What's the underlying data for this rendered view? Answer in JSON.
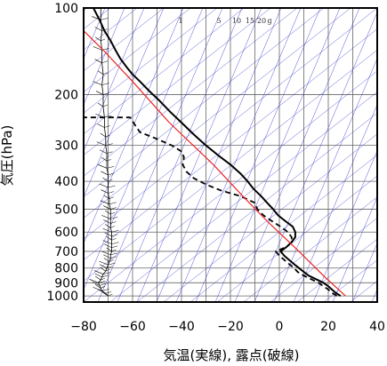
{
  "chart_data": {
    "type": "line",
    "title": "",
    "xlabel": "気温(実線), 露点(破線)",
    "ylabel": "気圧(hPa)",
    "y_scale": "log",
    "xlim": [
      -80,
      40
    ],
    "ylim": [
      1050,
      100
    ],
    "x_ticks": [
      -80,
      -60,
      -40,
      -20,
      0,
      20,
      40
    ],
    "y_ticks": [
      100,
      200,
      300,
      400,
      500,
      600,
      700,
      800,
      900,
      1000
    ],
    "grid": true,
    "mixing_ratio_labels": [
      "1",
      "5",
      "10",
      "15",
      "20",
      "g"
    ],
    "colors": {
      "frame": "#000000",
      "grid": "#666666",
      "isotherm_lines": "#3333cc",
      "temperature": "#000000",
      "dewpoint": "#000000",
      "reference_line": "#ee2222",
      "wind": "#000000"
    },
    "series": [
      {
        "key": "temperature",
        "style": "solid",
        "points": [
          [
            25.0,
            1000
          ],
          [
            23.0,
            975
          ],
          [
            21.5,
            950
          ],
          [
            20.0,
            925
          ],
          [
            18.0,
            900
          ],
          [
            15.0,
            875
          ],
          [
            12.0,
            850
          ],
          [
            10.0,
            825
          ],
          [
            8.0,
            800
          ],
          [
            6.0,
            775
          ],
          [
            4.0,
            750
          ],
          [
            2.0,
            725
          ],
          [
            0.5,
            700
          ],
          [
            3.0,
            675
          ],
          [
            5.0,
            650
          ],
          [
            6.5,
            625
          ],
          [
            6.5,
            600
          ],
          [
            5.5,
            575
          ],
          [
            2.5,
            550
          ],
          [
            -0.5,
            525
          ],
          [
            -2.5,
            500
          ],
          [
            -5.0,
            475
          ],
          [
            -7.5,
            450
          ],
          [
            -10.5,
            425
          ],
          [
            -13.0,
            400
          ],
          [
            -16.0,
            375
          ],
          [
            -20.0,
            350
          ],
          [
            -25.0,
            325
          ],
          [
            -30.0,
            300
          ],
          [
            -35.0,
            275
          ],
          [
            -40.0,
            250
          ],
          [
            -44.5,
            230
          ],
          [
            -49.0,
            210
          ],
          [
            -53.0,
            195
          ],
          [
            -57.0,
            180
          ],
          [
            -60.0,
            170
          ],
          [
            -62.5,
            160
          ],
          [
            -65.0,
            150
          ],
          [
            -67.0,
            140
          ],
          [
            -69.0,
            130
          ],
          [
            -71.5,
            120
          ],
          [
            -73.5,
            110
          ],
          [
            -76.0,
            100
          ]
        ]
      },
      {
        "key": "dewpoint",
        "style": "dashed",
        "points": [
          [
            23.5,
            1000
          ],
          [
            21.5,
            975
          ],
          [
            20.0,
            950
          ],
          [
            18.0,
            925
          ],
          [
            16.0,
            900
          ],
          [
            13.0,
            875
          ],
          [
            10.0,
            850
          ],
          [
            7.5,
            825
          ],
          [
            6.0,
            800
          ],
          [
            4.0,
            775
          ],
          [
            2.0,
            750
          ],
          [
            0.0,
            725
          ],
          [
            -1.5,
            700
          ],
          [
            3.0,
            675
          ],
          [
            5.0,
            650
          ],
          [
            5.0,
            625
          ],
          [
            3.5,
            600
          ],
          [
            0.5,
            575
          ],
          [
            -3.0,
            550
          ],
          [
            -6.5,
            525
          ],
          [
            -9.0,
            500
          ],
          [
            -10.0,
            475
          ],
          [
            -16.0,
            450
          ],
          [
            -24.0,
            430
          ],
          [
            -30.0,
            410
          ],
          [
            -35.0,
            390
          ],
          [
            -38.0,
            370
          ],
          [
            -39.5,
            350
          ],
          [
            -39.0,
            330
          ],
          [
            -40.0,
            315
          ],
          [
            -44.0,
            300
          ],
          [
            -50.0,
            285
          ],
          [
            -57.0,
            270
          ],
          [
            -59.0,
            255
          ],
          [
            -61.0,
            240
          ],
          [
            -80.0,
            240
          ]
        ]
      },
      {
        "key": "reference",
        "style": "solid",
        "points": [
          [
            27.0,
            1000
          ],
          [
            18.0,
            850
          ],
          [
            8.0,
            700
          ],
          [
            -5.0,
            550
          ],
          [
            -15.0,
            450
          ],
          [
            -27.0,
            350
          ],
          [
            -45.0,
            250
          ],
          [
            -60.0,
            180
          ],
          [
            -72.0,
            140
          ],
          [
            -80.0,
            120
          ]
        ]
      }
    ],
    "wind_profile": [
      [
        1000,
        -70.0
      ],
      [
        980,
        -71.0
      ],
      [
        960,
        -72.5
      ],
      [
        940,
        -73.0
      ],
      [
        920,
        -73.5
      ],
      [
        900,
        -74.0
      ],
      [
        880,
        -73.0
      ],
      [
        860,
        -72.5
      ],
      [
        840,
        -72.0
      ],
      [
        820,
        -71.0
      ],
      [
        800,
        -70.5
      ],
      [
        780,
        -70.0
      ],
      [
        760,
        -69.5
      ],
      [
        740,
        -69.0
      ],
      [
        720,
        -69.0
      ],
      [
        700,
        -68.5
      ],
      [
        680,
        -68.5
      ],
      [
        660,
        -68.5
      ],
      [
        640,
        -68.5
      ],
      [
        620,
        -68.5
      ],
      [
        600,
        -68.5
      ],
      [
        580,
        -69.0
      ],
      [
        560,
        -69.0
      ],
      [
        540,
        -69.0
      ],
      [
        520,
        -69.0
      ],
      [
        500,
        -69.0
      ],
      [
        480,
        -69.5
      ],
      [
        460,
        -69.5
      ],
      [
        440,
        -70.0
      ],
      [
        420,
        -70.0
      ],
      [
        400,
        -70.0
      ],
      [
        380,
        -70.0
      ],
      [
        360,
        -70.5
      ],
      [
        340,
        -70.5
      ],
      [
        320,
        -70.5
      ],
      [
        300,
        -71.0
      ],
      [
        280,
        -71.0
      ],
      [
        260,
        -71.5
      ],
      [
        240,
        -71.5
      ],
      [
        220,
        -72.0
      ],
      [
        200,
        -72.0
      ],
      [
        185,
        -72.5
      ],
      [
        170,
        -72.0
      ],
      [
        155,
        -72.5
      ],
      [
        140,
        -72.5
      ],
      [
        130,
        -73.0
      ],
      [
        120,
        -72.5
      ],
      [
        110,
        -73.0
      ],
      [
        100,
        -73.0
      ]
    ]
  }
}
